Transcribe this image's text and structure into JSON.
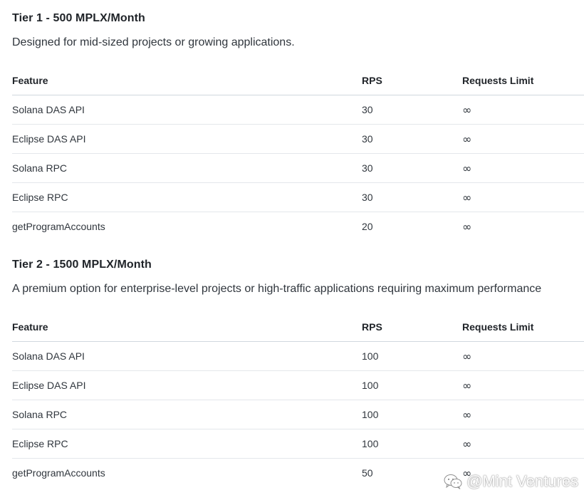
{
  "tiers": [
    {
      "title": "Tier 1 - 500 MPLX/Month",
      "description": "Designed for mid-sized projects or growing applications.",
      "columns": [
        "Feature",
        "RPS",
        "Requests Limit"
      ],
      "rows": [
        {
          "feature": "Solana DAS API",
          "rps": "30",
          "limit": "∞"
        },
        {
          "feature": "Eclipse DAS API",
          "rps": "30",
          "limit": "∞"
        },
        {
          "feature": "Solana RPC",
          "rps": "30",
          "limit": "∞"
        },
        {
          "feature": "Eclipse RPC",
          "rps": "30",
          "limit": "∞"
        },
        {
          "feature": "getProgramAccounts",
          "rps": "20",
          "limit": "∞"
        }
      ]
    },
    {
      "title": "Tier 2 - 1500 MPLX/Month",
      "description": "A premium option for enterprise-level projects or high-traffic applications requiring maximum performance",
      "columns": [
        "Feature",
        "RPS",
        "Requests Limit"
      ],
      "rows": [
        {
          "feature": "Solana DAS API",
          "rps": "100",
          "limit": "∞"
        },
        {
          "feature": "Eclipse DAS API",
          "rps": "100",
          "limit": "∞"
        },
        {
          "feature": "Solana RPC",
          "rps": "100",
          "limit": "∞"
        },
        {
          "feature": "Eclipse RPC",
          "rps": "100",
          "limit": "∞"
        },
        {
          "feature": "getProgramAccounts",
          "rps": "50",
          "limit": "∞"
        }
      ]
    }
  ],
  "watermark": {
    "text": "@Mint Ventures",
    "icon": "wechat-logo-icon"
  }
}
